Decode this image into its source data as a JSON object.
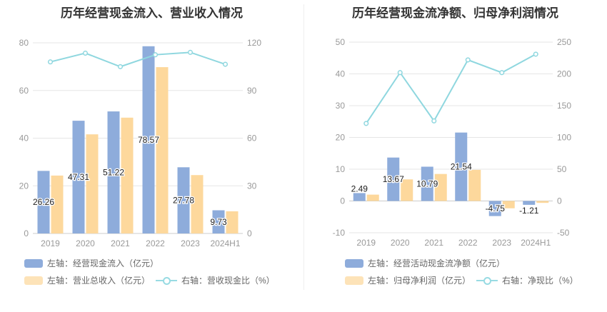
{
  "colors": {
    "bar1": "#8eacdb",
    "bar2": "#fdd89c",
    "line": "#8fd7df",
    "axis_text": "#999999",
    "grid": "#e6e6e6"
  },
  "chart_data": [
    {
      "type": "bar",
      "title": "历年经营现金流入、营业收入情况",
      "categories": [
        "2019",
        "2020",
        "2021",
        "2022",
        "2023",
        "2024H1"
      ],
      "left_axis": {
        "ylim": [
          0,
          80
        ],
        "ticks": [
          "0",
          "20",
          "40",
          "60",
          "80"
        ]
      },
      "right_axis": {
        "ylim": [
          0,
          120
        ],
        "ticks": [
          "0",
          "30",
          "60",
          "90",
          "120"
        ]
      },
      "series": [
        {
          "name": "左轴：经营现金流入（亿元）",
          "kind": "bar",
          "axis": "left",
          "values": [
            26.26,
            47.31,
            51.22,
            78.57,
            27.78,
            9.73
          ],
          "labels": [
            "26.26",
            "47.31",
            "51.22",
            "78.57",
            "27.78",
            "9.73"
          ]
        },
        {
          "name": "左轴：营业总收入（亿元）",
          "kind": "bar",
          "axis": "left",
          "values": [
            24.3,
            41.6,
            48.6,
            69.8,
            24.5,
            9.3
          ]
        },
        {
          "name": "右轴：营收现金比（%）",
          "kind": "line",
          "axis": "right",
          "values": [
            108,
            113.5,
            105,
            112.5,
            114,
            106.5
          ]
        }
      ]
    },
    {
      "type": "bar",
      "title": "历年经营现金流净额、归母净利润情况",
      "categories": [
        "2019",
        "2020",
        "2021",
        "2022",
        "2023",
        "2024H1"
      ],
      "left_axis": {
        "ylim": [
          -10,
          50
        ],
        "ticks": [
          "-10",
          "0",
          "10",
          "20",
          "30",
          "40",
          "50"
        ]
      },
      "right_axis": {
        "ylim": [
          -50,
          250
        ],
        "ticks": [
          "-50",
          "0",
          "50",
          "100",
          "150",
          "200",
          "250"
        ]
      },
      "series": [
        {
          "name": "左轴：经营活动现金流净额（亿元）",
          "kind": "bar",
          "axis": "left",
          "values": [
            2.49,
            13.67,
            10.79,
            21.54,
            -4.75,
            -1.21
          ],
          "labels": [
            "2.49",
            "13.67",
            "10.79",
            "21.54",
            "-4.75",
            "-1.21"
          ]
        },
        {
          "name": "左轴：归母净利润（亿元）",
          "kind": "bar",
          "axis": "left",
          "values": [
            2.0,
            6.8,
            8.5,
            9.8,
            -2.3,
            -0.6
          ]
        },
        {
          "name": "右轴：净现比（%）",
          "kind": "line",
          "axis": "right",
          "values": [
            122,
            202,
            126,
            222,
            202,
            231
          ]
        }
      ]
    }
  ]
}
